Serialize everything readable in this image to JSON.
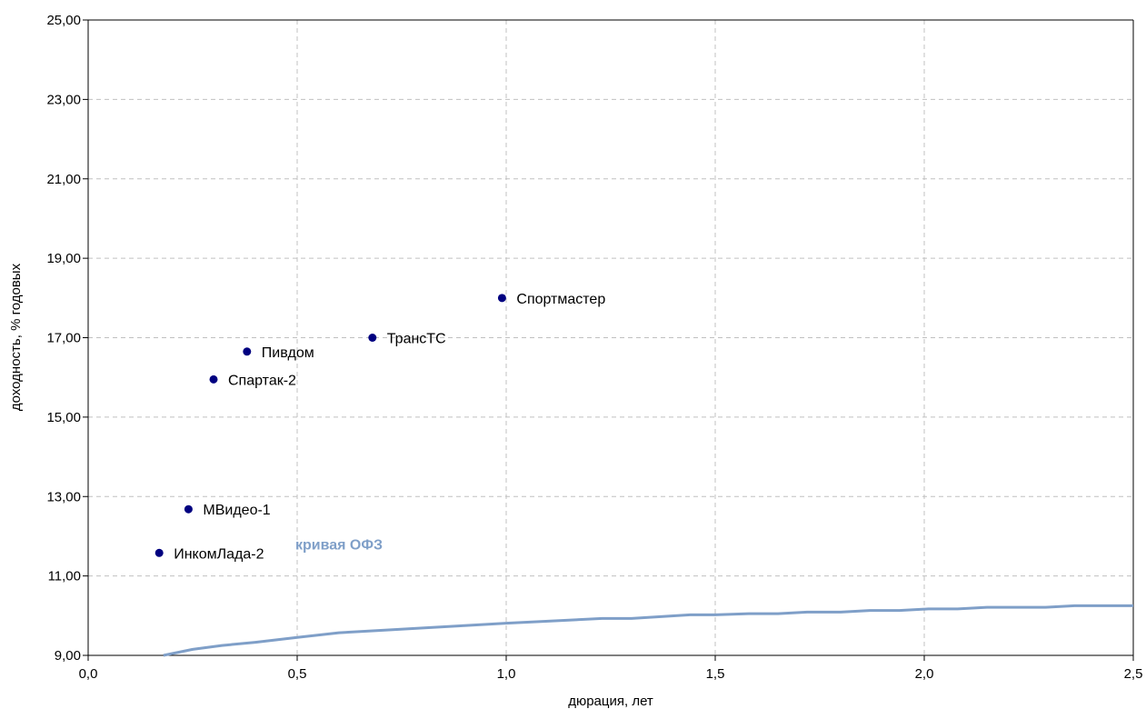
{
  "chart_data": {
    "type": "scatter",
    "title": "",
    "xlabel": "дюрация, лет",
    "ylabel": "доходность, % годовых",
    "xlim": [
      0.0,
      2.5
    ],
    "ylim": [
      9.0,
      25.0
    ],
    "x_ticks": [
      "0,0",
      "0,5",
      "1,0",
      "1,5",
      "2,0",
      "2,5"
    ],
    "y_ticks": [
      "9,00",
      "11,00",
      "13,00",
      "15,00",
      "17,00",
      "19,00",
      "21,00",
      "23,00",
      "25,00"
    ],
    "grid": true,
    "colors": {
      "points": "#000080",
      "curve": "#7f9fc8",
      "grid": "#c0c0c0"
    },
    "points": [
      {
        "name": "ИнкомЛада-2",
        "x": 0.17,
        "y": 11.58
      },
      {
        "name": "МВидео-1",
        "x": 0.24,
        "y": 12.68
      },
      {
        "name": "Спартак-2",
        "x": 0.3,
        "y": 15.95
      },
      {
        "name": "Пивдом",
        "x": 0.38,
        "y": 16.65
      },
      {
        "name": "ТрансТС",
        "x": 0.68,
        "y": 17.0
      },
      {
        "name": "Спортмастер",
        "x": 0.99,
        "y": 18.0
      }
    ],
    "curve": {
      "name": "кривая ОФЗ",
      "x": [
        0.18,
        0.25,
        0.32,
        0.4,
        0.5,
        0.6,
        0.7,
        0.8,
        0.9,
        1.0,
        1.1,
        1.23,
        1.3,
        1.44,
        1.5,
        1.58,
        1.65,
        1.72,
        1.8,
        1.87,
        1.94,
        2.01,
        2.08,
        2.15,
        2.22,
        2.29,
        2.36,
        2.43,
        2.5
      ],
      "y": [
        9.0,
        9.15,
        9.25,
        9.33,
        9.45,
        9.57,
        9.63,
        9.69,
        9.75,
        9.81,
        9.86,
        9.93,
        9.93,
        10.02,
        10.02,
        10.05,
        10.05,
        10.09,
        10.09,
        10.13,
        10.13,
        10.17,
        10.17,
        10.21,
        10.21,
        10.21,
        10.25,
        10.25,
        10.25
      ]
    }
  }
}
